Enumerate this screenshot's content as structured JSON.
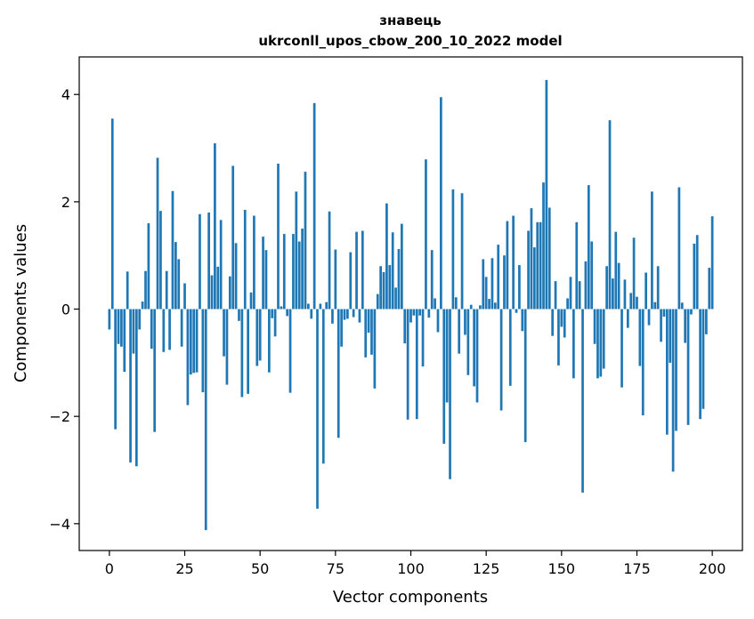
{
  "chart_data": {
    "type": "bar",
    "title_line1": "знавець",
    "title_line2": "ukrconll_upos_cbow_200_10_2022 model",
    "xlabel": "Vector components",
    "ylabel": "Components values",
    "xlim": [
      -10,
      210
    ],
    "ylim": [
      -4.5,
      4.7
    ],
    "xticks": [
      0,
      25,
      50,
      75,
      100,
      125,
      150,
      175,
      200
    ],
    "yticks": [
      -4,
      -2,
      0,
      2,
      4
    ],
    "ytick_labels": [
      "−4",
      "−2",
      "0",
      "2",
      "4"
    ],
    "grid": false,
    "bar_color": "#1f77b4",
    "values": [
      -0.38,
      3.55,
      -2.24,
      -0.65,
      -0.7,
      -1.17,
      0.7,
      -2.86,
      -0.83,
      -2.93,
      -0.38,
      0.14,
      0.71,
      1.6,
      -0.74,
      -2.29,
      2.82,
      1.83,
      -0.8,
      0.71,
      -0.76,
      2.2,
      1.25,
      0.93,
      -0.7,
      0.48,
      -1.79,
      -1.22,
      -1.19,
      -1.18,
      1.77,
      -1.55,
      -4.12,
      1.8,
      0.63,
      3.09,
      0.79,
      1.66,
      -0.88,
      -1.41,
      0.61,
      2.67,
      1.23,
      -0.22,
      -1.64,
      1.85,
      -1.58,
      0.31,
      1.74,
      -1.06,
      -0.96,
      1.35,
      1.1,
      -1.18,
      -0.17,
      -0.51,
      2.71,
      0.05,
      1.4,
      -0.13,
      -1.56,
      1.4,
      2.19,
      1.26,
      1.5,
      2.56,
      0.1,
      -0.18,
      3.84,
      -3.72,
      0.1,
      -2.88,
      0.13,
      1.82,
      -0.27,
      1.11,
      -2.4,
      -0.7,
      -0.2,
      -0.18,
      1.06,
      -0.15,
      1.44,
      -0.25,
      1.46,
      -0.9,
      -0.44,
      -0.85,
      -1.48,
      0.28,
      0.8,
      0.69,
      1.97,
      0.82,
      1.43,
      0.4,
      1.12,
      1.59,
      -0.64,
      -2.06,
      -0.25,
      -0.12,
      -2.05,
      -0.12,
      -1.07,
      2.79,
      -0.16,
      1.1,
      0.2,
      -0.43,
      3.95,
      -2.51,
      -1.74,
      -3.17,
      2.23,
      0.22,
      -0.83,
      2.16,
      -0.48,
      -1.23,
      0.08,
      -1.44,
      -1.74,
      0.07,
      0.93,
      0.6,
      0.19,
      0.95,
      0.12,
      1.2,
      -1.89,
      1.0,
      1.64,
      -1.43,
      1.74,
      -0.07,
      0.82,
      -0.41,
      -2.48,
      1.46,
      1.88,
      1.15,
      1.62,
      1.62,
      2.36,
      4.27,
      1.89,
      -0.5,
      0.52,
      -1.05,
      -0.33,
      -0.53,
      0.2,
      0.6,
      -1.29,
      1.62,
      0.52,
      -3.42,
      0.89,
      2.31,
      1.26,
      -0.65,
      -1.29,
      -1.26,
      -1.11,
      0.8,
      3.52,
      0.57,
      1.44,
      0.86,
      -1.46,
      0.55,
      -0.35,
      0.3,
      1.33,
      0.23,
      -1.06,
      -1.98,
      0.68,
      -0.3,
      2.19,
      0.13,
      0.8,
      -0.61,
      -0.14,
      -2.34,
      -1.0,
      -3.03,
      -2.27,
      2.27,
      0.12,
      -0.63,
      -2.16,
      -0.1,
      1.22,
      1.38,
      -2.05,
      -1.86,
      -0.47,
      0.77,
      1.73
    ]
  }
}
